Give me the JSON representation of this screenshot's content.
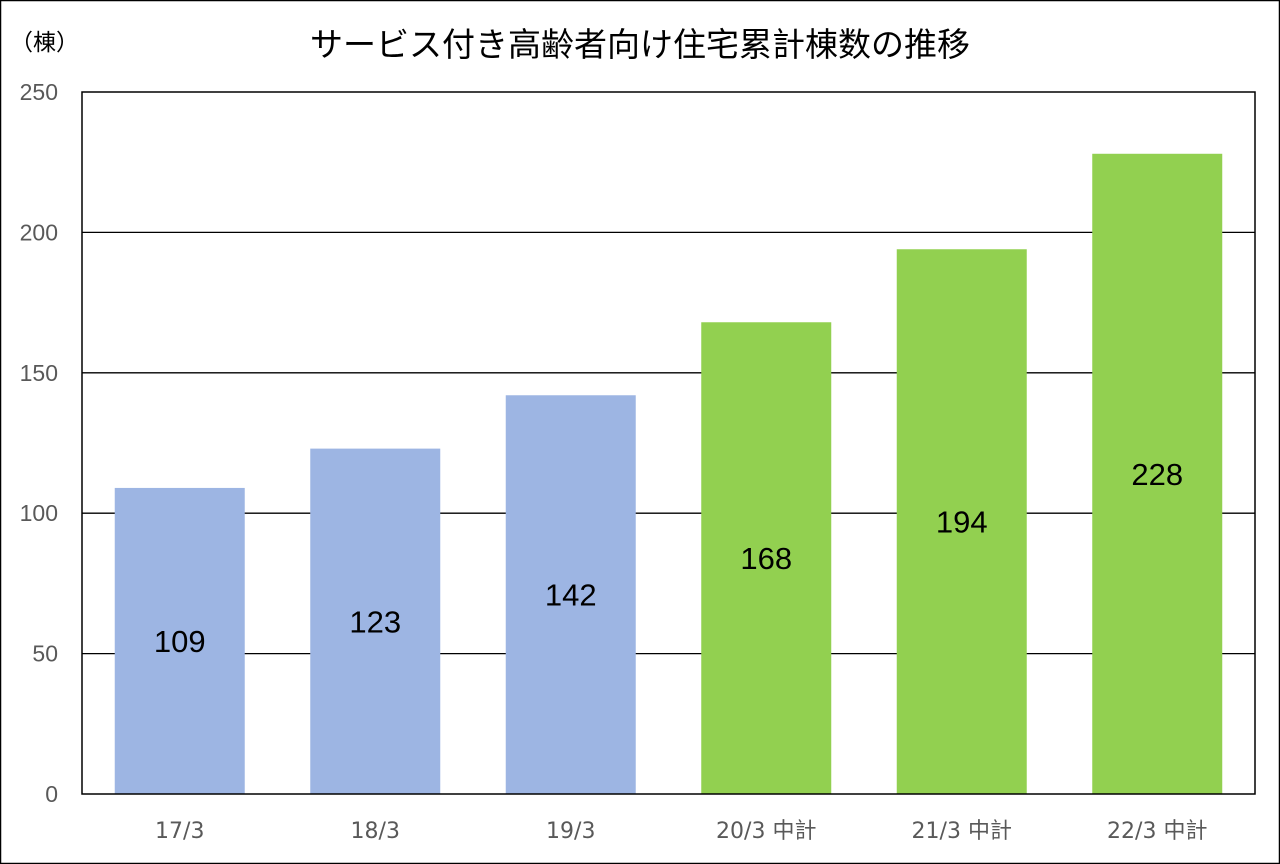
{
  "chart_data": {
    "type": "bar",
    "title": "サービス付き高齢者向け住宅累計棟数の推移",
    "unit_label": "（棟）",
    "xlabel": "",
    "ylabel": "",
    "categories": [
      "17/3",
      "18/3",
      "19/3",
      "20/3 中計",
      "21/3 中計",
      "22/3 中計"
    ],
    "values": [
      109,
      123,
      142,
      168,
      194,
      228
    ],
    "bar_colors": [
      "#9DB5E3",
      "#9DB5E3",
      "#9DB5E3",
      "#92D050",
      "#92D050",
      "#92D050"
    ],
    "ylim": [
      0,
      250
    ],
    "yticks": [
      0,
      50,
      100,
      150,
      200,
      250
    ],
    "grid": true,
    "legend": "none",
    "data_labels": true
  }
}
